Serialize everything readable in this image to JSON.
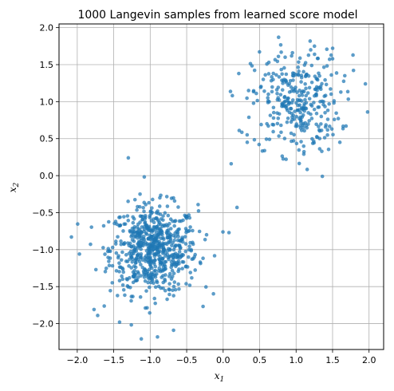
{
  "chart_data": {
    "type": "scatter",
    "title": "1000 Langevin samples from learned score model",
    "xlabel": "x",
    "xlabel_sub": "1",
    "ylabel": "x",
    "ylabel_sub": "2",
    "xlim": [
      -2.25,
      2.2
    ],
    "ylim": [
      -2.35,
      2.05
    ],
    "xticks": [
      "−2.0",
      "−1.5",
      "−1.0",
      "−0.5",
      "0.0",
      "0.5",
      "1.0",
      "1.5",
      "2.0"
    ],
    "xtick_values": [
      -2.0,
      -1.5,
      -1.0,
      -0.5,
      0.0,
      0.5,
      1.0,
      1.5,
      2.0
    ],
    "yticks": [
      "−2.0",
      "−1.5",
      "−1.0",
      "−0.5",
      "0.0",
      "0.5",
      "1.0",
      "1.5",
      "2.0"
    ],
    "ytick_values": [
      -2.0,
      -1.5,
      -1.0,
      -0.5,
      0.0,
      0.5,
      1.0,
      1.5,
      2.0
    ],
    "grid": true,
    "point_color": "#1f77b4",
    "n_samples": 1000,
    "clusters": [
      {
        "center": [
          -0.95,
          -1.0
        ],
        "std": [
          0.3,
          0.3
        ],
        "count": 680
      },
      {
        "center": [
          1.0,
          1.0
        ],
        "std": [
          0.3,
          0.35
        ],
        "count": 320
      }
    ],
    "notable_points": [
      [
        -2.08,
        -0.83
      ],
      [
        -1.97,
        -1.06
      ],
      [
        -1.77,
        -1.81
      ],
      [
        -1.72,
        -1.89
      ],
      [
        -1.42,
        -1.98
      ],
      [
        -1.3,
        0.24
      ],
      [
        -0.9,
        -2.18
      ],
      [
        -0.68,
        -2.09
      ],
      [
        0.08,
        -0.77
      ],
      [
        0.11,
        0.16
      ],
      [
        0.19,
        -0.43
      ],
      [
        0.22,
        0.61
      ],
      [
        0.33,
        0.45
      ],
      [
        0.62,
        1.1
      ],
      [
        0.76,
        1.87
      ],
      [
        0.85,
        1.6
      ],
      [
        1.2,
        0.83
      ],
      [
        1.33,
        1.0
      ],
      [
        1.36,
        -0.01
      ],
      [
        1.49,
        0.63
      ],
      [
        1.6,
        0.45
      ],
      [
        1.78,
        1.63
      ],
      [
        1.95,
        1.24
      ],
      [
        1.98,
        0.86
      ],
      [
        1.5,
        1.58
      ],
      [
        1.2,
        1.7
      ],
      [
        0.95,
        1.66
      ],
      [
        0.55,
        1.3
      ],
      [
        0.6,
        0.7
      ],
      [
        1.1,
        0.65
      ]
    ]
  }
}
